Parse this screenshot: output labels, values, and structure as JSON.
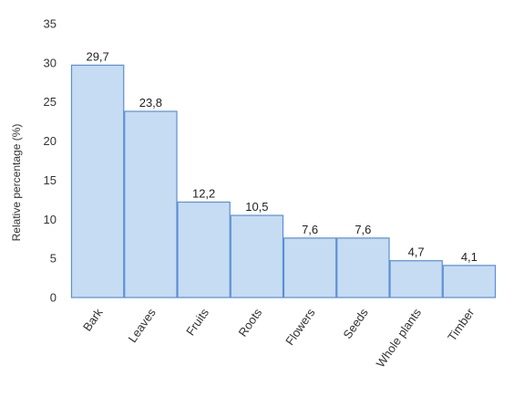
{
  "chart_data": {
    "type": "bar",
    "categories": [
      "Bark",
      "Leaves",
      "Fruits",
      "Roots",
      "Flowers",
      "Seeds",
      "Whole plants",
      "Timber"
    ],
    "values": [
      29.7,
      23.8,
      12.2,
      10.5,
      7.6,
      7.6,
      4.7,
      4.1
    ],
    "data_labels": [
      "29,7",
      "23,8",
      "12,2",
      "10,5",
      "7,6",
      "7,6",
      "4,7",
      "4,1"
    ],
    "ylabel": "Relative percentage (%)",
    "xlabel": "",
    "ylim": [
      0,
      35
    ],
    "yticks": [
      "0",
      "5",
      "10",
      "15",
      "20",
      "25",
      "30",
      "35"
    ],
    "grid": false,
    "legend": "none",
    "colors": {
      "bar_fill": "#c6dcf2",
      "bar_stroke": "#5b8ed6"
    }
  }
}
